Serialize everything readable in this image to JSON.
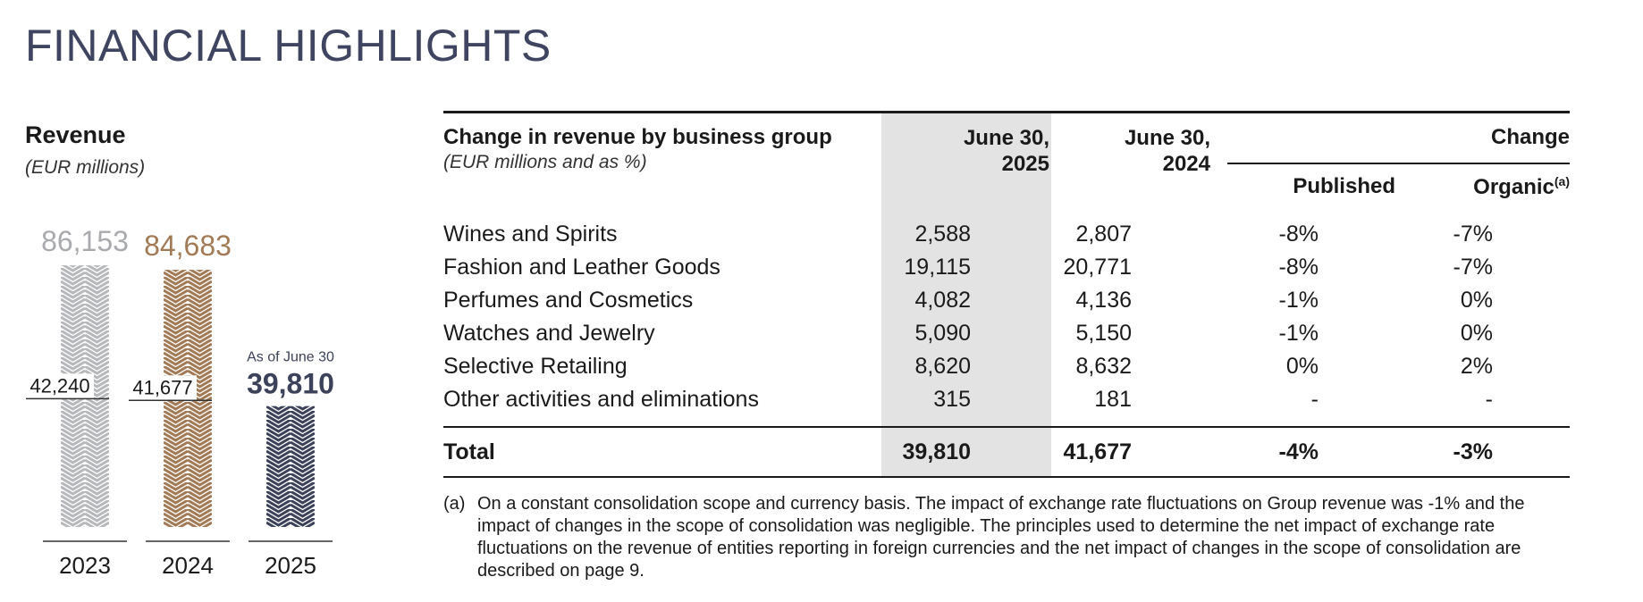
{
  "page_title": "FINANCIAL HIGHLIGHTS",
  "revenue_chart": {
    "title": "Revenue",
    "unit": "(EUR millions)",
    "as_of_label": "As of June 30",
    "colors": {
      "y2023": "#b7b8bb",
      "y2024": "#a27a55",
      "y2025": "#3b4259",
      "label2023": "#a9aaad",
      "label2024": "#a27a55",
      "label2025": "#3b4259"
    }
  },
  "chart_data": {
    "type": "bar",
    "title": "Revenue",
    "ylabel": "(EUR millions)",
    "categories": [
      "2023",
      "2024",
      "2025"
    ],
    "series": [
      {
        "values": [
          86153,
          84683,
          39810
        ]
      },
      {
        "values": [
          42240,
          41677,
          39810
        ]
      }
    ],
    "total_labels": [
      "86,153",
      "84,683",
      "39,810"
    ],
    "half_year_labels": [
      "42,240",
      "41,677",
      ""
    ],
    "annotations": [
      "As of June 30"
    ]
  },
  "table": {
    "title": "Change in revenue by business group",
    "subtitle": "(EUR millions and as %)",
    "col_2025": [
      "June 30,",
      "2025"
    ],
    "col_2024": [
      "June 30,",
      "2024"
    ],
    "col_change": "Change",
    "col_published": "Published",
    "col_organic": "Organic",
    "col_organic_note": "(a)",
    "rows": [
      {
        "label": "Wines and Spirits",
        "y2025": "2,588",
        "y2024": "2,807",
        "published": "-8%",
        "organic": "-7%"
      },
      {
        "label": "Fashion and Leather Goods",
        "y2025": "19,115",
        "y2024": "20,771",
        "published": "-8%",
        "organic": "-7%"
      },
      {
        "label": "Perfumes and Cosmetics",
        "y2025": "4,082",
        "y2024": "4,136",
        "published": "-1%",
        "organic": "0%"
      },
      {
        "label": "Watches and Jewelry",
        "y2025": "5,090",
        "y2024": "5,150",
        "published": "-1%",
        "organic": "0%"
      },
      {
        "label": "Selective Retailing",
        "y2025": "8,620",
        "y2024": "8,632",
        "published": "0%",
        "organic": "2%"
      },
      {
        "label": "Other activities and eliminations",
        "y2025": "315",
        "y2024": "181",
        "published": "-",
        "organic": "-"
      }
    ],
    "total": {
      "label": "Total",
      "y2025": "39,810",
      "y2024": "41,677",
      "published": "-4%",
      "organic": "-3%"
    }
  },
  "footnote": {
    "mark": "(a)",
    "text": "On a constant consolidation scope and currency basis. The impact of exchange rate fluctuations on Group revenue was -1% and the impact of changes in the scope of consolidation was negligible. The principles used to determine the net impact of exchange rate fluctuations on the revenue of entities reporting in foreign currencies and the net impact of changes in the scope of consolidation are described on page 9."
  }
}
